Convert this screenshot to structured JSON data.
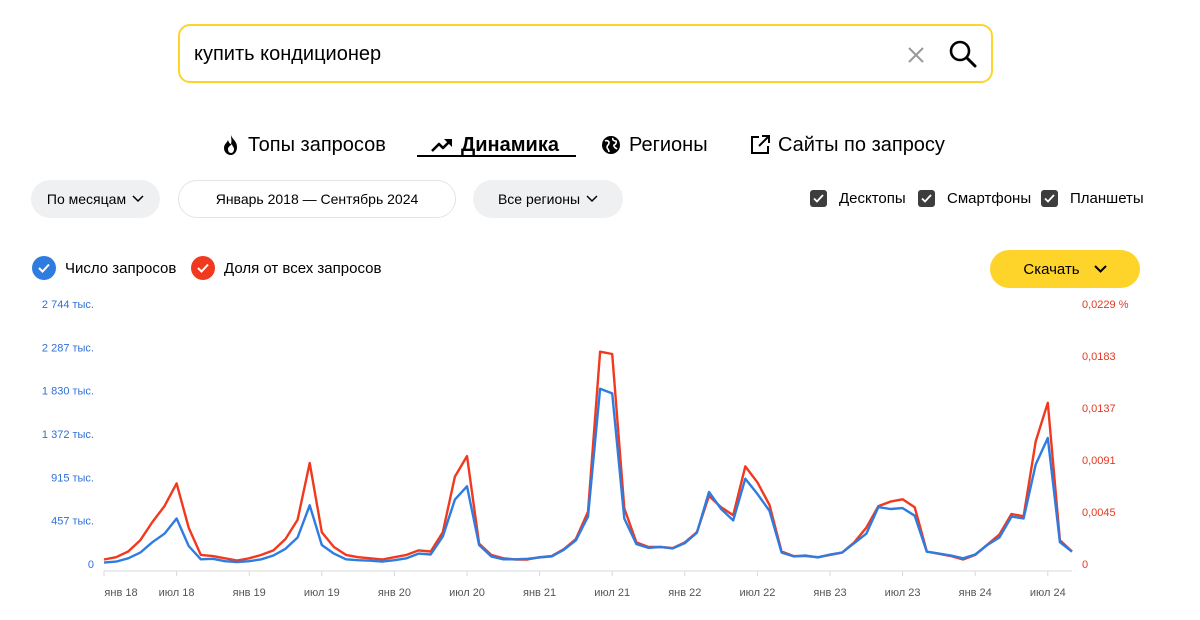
{
  "search": {
    "query": "купить кондиционер"
  },
  "tabs": [
    {
      "label": "Топы запросов",
      "icon": "flame-icon"
    },
    {
      "label": "Динамика",
      "icon": "trend-up-icon",
      "active": true
    },
    {
      "label": "Регионы",
      "icon": "globe-icon"
    },
    {
      "label": "Сайты по запросу",
      "icon": "external-link-icon"
    }
  ],
  "filters": {
    "period": "По месяцам",
    "date_range": "Январь 2018 — Сентябрь 2024",
    "regions": "Все регионы"
  },
  "devices": [
    {
      "label": "Десктопы",
      "checked": true
    },
    {
      "label": "Смартфоны",
      "checked": true
    },
    {
      "label": "Планшеты",
      "checked": true
    }
  ],
  "legend": {
    "count_label": "Число запросов",
    "share_label": "Доля от всех запросов"
  },
  "download_label": "Скачать",
  "colors": {
    "accent": "#fed42b",
    "count": "#2f7ce0",
    "share": "#f0391e"
  },
  "chart_data": {
    "type": "line",
    "y_left_ticks": [
      "0",
      "457 тыс.",
      "915 тыс.",
      "1 372 тыс.",
      "1 830 тыс.",
      "2 287 тыс.",
      "2 744 тыс."
    ],
    "y_right_ticks": [
      "0",
      "0,0045",
      "0,0091",
      "0,0137",
      "0,0183",
      "0,0229 %"
    ],
    "x_ticks": [
      "янв 18",
      "июл 18",
      "янв 19",
      "июл 19",
      "янв 20",
      "июл 20",
      "янв 21",
      "июл 21",
      "янв 22",
      "июл 22",
      "янв 23",
      "июл 23",
      "янв 24",
      "июл 24"
    ],
    "ylim_left": [
      0,
      2744
    ],
    "ylim_right": [
      0,
      0.0229
    ],
    "series": [
      {
        "name": "Число запросов",
        "axis": "left",
        "values": [
          15,
          25,
          60,
          120,
          230,
          320,
          480,
          190,
          50,
          55,
          30,
          20,
          30,
          50,
          90,
          160,
          280,
          620,
          200,
          110,
          50,
          40,
          35,
          25,
          40,
          60,
          110,
          100,
          290,
          680,
          820,
          200,
          80,
          50,
          50,
          55,
          70,
          80,
          150,
          250,
          500,
          1850,
          1800,
          480,
          210,
          170,
          180,
          165,
          220,
          330,
          760,
          580,
          460,
          900,
          740,
          560,
          120,
          80,
          90,
          70,
          100,
          120,
          220,
          320,
          600,
          580,
          590,
          510,
          130,
          110,
          90,
          60,
          100,
          200,
          280,
          500,
          480,
          1050,
          1330,
          230,
          130
        ]
      },
      {
        "name": "Доля от всех запросов",
        "axis": "right",
        "values": [
          0.0004,
          0.0006,
          0.0011,
          0.0021,
          0.0037,
          0.0051,
          0.0071,
          0.0032,
          0.0008,
          0.0007,
          0.0005,
          0.0003,
          0.0005,
          0.0008,
          0.0012,
          0.0022,
          0.0039,
          0.0089,
          0.0028,
          0.0015,
          0.0008,
          0.0006,
          0.0005,
          0.0004,
          0.0006,
          0.0008,
          0.0012,
          0.0011,
          0.0028,
          0.0077,
          0.0095,
          0.0018,
          0.0008,
          0.0005,
          0.0004,
          0.0004,
          0.0006,
          0.0007,
          0.0013,
          0.0022,
          0.0046,
          0.0187,
          0.0185,
          0.0049,
          0.0019,
          0.0015,
          0.0015,
          0.0014,
          0.0019,
          0.0028,
          0.006,
          0.005,
          0.0043,
          0.0086,
          0.0072,
          0.0052,
          0.0011,
          0.0007,
          0.0007,
          0.0006,
          0.0008,
          0.001,
          0.0019,
          0.0032,
          0.0051,
          0.0055,
          0.0057,
          0.005,
          0.0011,
          0.0009,
          0.0007,
          0.0004,
          0.0008,
          0.0017,
          0.0026,
          0.0044,
          0.0042,
          0.0108,
          0.0142,
          0.0021,
          0.0011
        ]
      }
    ]
  }
}
